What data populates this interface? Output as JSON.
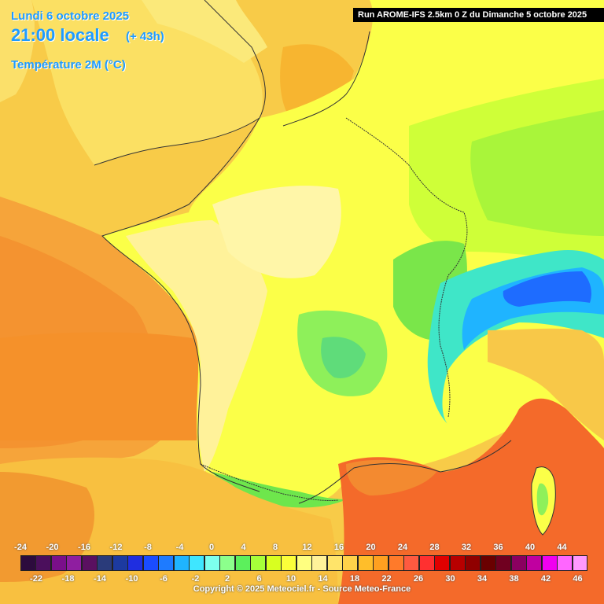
{
  "header": {
    "date": "Lundi 6 octobre 2025",
    "time": "21:00 locale",
    "offset": "(+ 43h)",
    "parameter": "Température 2M (°C)",
    "run": "Run AROME-IFS 2.5km 0 Z du Dimanche 5 octobre 2025"
  },
  "legend": {
    "top_ticks": [
      "-24",
      "-20",
      "-16",
      "-12",
      "-8",
      "-4",
      "0",
      "4",
      "8",
      "12",
      "16",
      "20",
      "24",
      "28",
      "32",
      "36",
      "40",
      "44"
    ],
    "bottom_ticks": [
      "-22",
      "-18",
      "-14",
      "-10",
      "-6",
      "-2",
      "2",
      "6",
      "10",
      "14",
      "18",
      "22",
      "26",
      "30",
      "34",
      "38",
      "42",
      "46"
    ],
    "colors": [
      "#2d0b3d",
      "#4b0f5c",
      "#7a0f8a",
      "#8f1ea0",
      "#5a1060",
      "#2a3b7a",
      "#1c3aa0",
      "#1f2ee0",
      "#1a4cff",
      "#1e7bff",
      "#1fb4ff",
      "#3fe6ff",
      "#7dffee",
      "#8cff8c",
      "#5cf05c",
      "#a6ff3a",
      "#d8ff20",
      "#fbff3a",
      "#ffff80",
      "#fff29a",
      "#ffe46a",
      "#ffd24a",
      "#ffbe2a",
      "#ffa020",
      "#ff7a2a",
      "#ff5a40",
      "#ff3030",
      "#e00000",
      "#b80000",
      "#900000",
      "#6a0000",
      "#700020",
      "#8a0060",
      "#c000a0",
      "#f000f0",
      "#ff66ff",
      "#ff99ff"
    ]
  },
  "footer": {
    "copyright": "Copyright © 2025 Meteociel.fr - Source Meteo-France"
  },
  "colors": {
    "title": "#1f9bff",
    "sea_warm": "#f59b2a",
    "med_sea": "#f46a2a",
    "land_mild": "#fbff3a",
    "alps_cold": "#1e7bff"
  }
}
